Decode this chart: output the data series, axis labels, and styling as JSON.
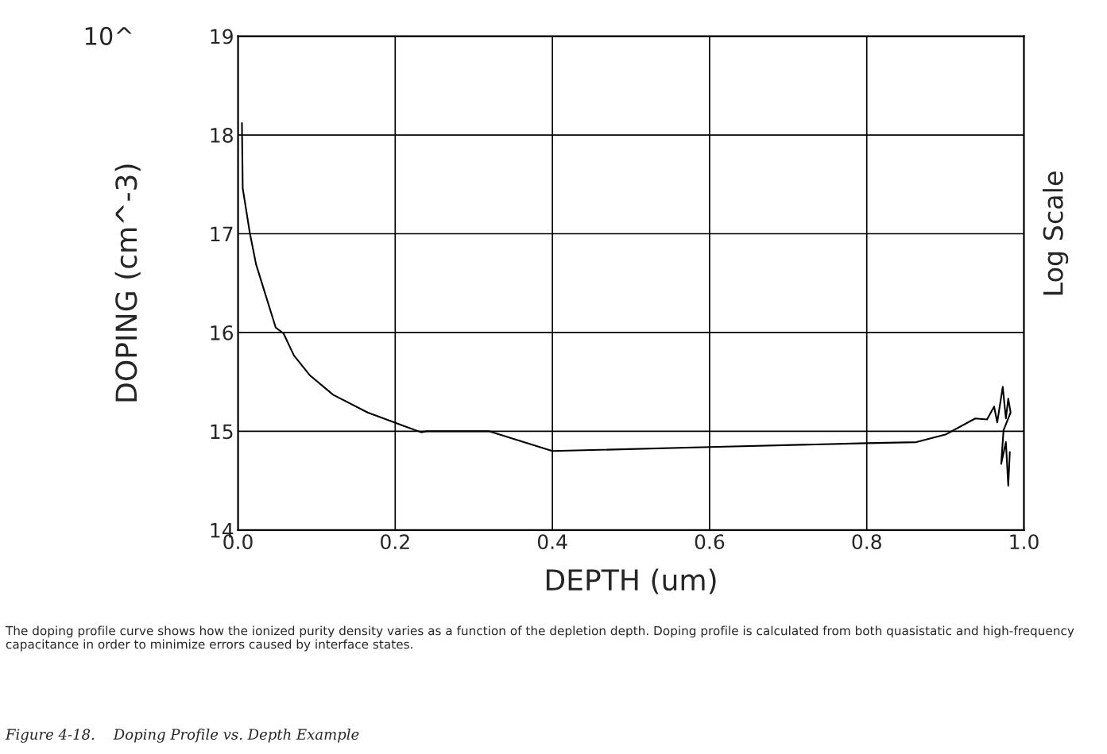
{
  "chart_data": {
    "type": "line",
    "xlabel": "DEPTH (um)",
    "ylabel": "DOPING (cm^-3)",
    "y2label": "Log Scale",
    "x": [
      0.005,
      0.006,
      0.015,
      0.023,
      0.048,
      0.058,
      0.071,
      0.091,
      0.121,
      0.165,
      0.199,
      0.233,
      0.24,
      0.32,
      0.4,
      0.6,
      0.8,
      0.863,
      0.901,
      0.938,
      0.953,
      0.962,
      0.966,
      0.973,
      0.977,
      0.98,
      0.983,
      0.974,
      0.971,
      0.977,
      0.98,
      0.982
    ],
    "series": [
      {
        "color": "#000000",
        "values": [
          18.12,
          17.46,
          17.01,
          16.69,
          16.05,
          15.99,
          15.77,
          15.57,
          15.37,
          15.19,
          15.09,
          14.99,
          15.0,
          15.0,
          14.8,
          14.84,
          14.88,
          14.89,
          14.97,
          15.13,
          15.12,
          15.25,
          15.09,
          15.45,
          15.13,
          15.33,
          15.19,
          15.01,
          14.67,
          14.89,
          14.45,
          14.79
        ]
      }
    ],
    "xlim": [
      0,
      1
    ],
    "ylim": [
      14,
      19
    ],
    "xticks": [
      {
        "value": 0,
        "label": "0.0"
      },
      {
        "value": 0.2,
        "label": "0.2"
      },
      {
        "value": 0.4,
        "label": "0.4"
      },
      {
        "value": 0.6,
        "label": "0.6"
      },
      {
        "value": 0.8,
        "label": "0.8"
      },
      {
        "value": 1,
        "label": "1.0"
      }
    ],
    "yticks": [
      14,
      15,
      16,
      17,
      18,
      19
    ],
    "grid": true,
    "marker": "none",
    "line_style": "solid",
    "annotations": [
      "10^",
      "The doping profile curve shows how the ionized purity density varies as a function of the depletion depth. Doping profile is calculated from both quasistatic and high-frequency capacitance in order to minimize errors caused by interface states.",
      "Figure 4-18.    Doping Profile vs. Depth Example"
    ]
  }
}
